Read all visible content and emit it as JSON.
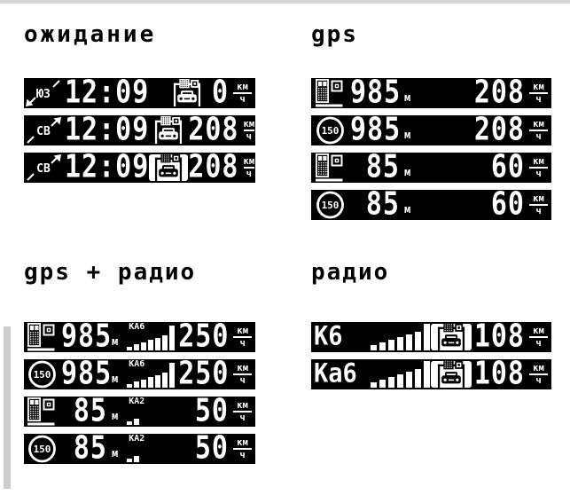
{
  "page": {
    "background": "#ffffff",
    "top_strip_color": "#d6d6d6",
    "scrollbar_color": "#cccccc",
    "lcd_background": "#000000",
    "lcd_foreground": "#ffffff"
  },
  "distance_unit": "м",
  "speed_unit": {
    "top": "км",
    "bottom": "ч"
  },
  "sections": [
    {
      "id": "standby",
      "title": "ожидание",
      "displays": [
        {
          "type": "standby",
          "direction": "ЮЗ",
          "direction_arrow": "sw",
          "time": "12:09",
          "icon": "gantry-camera",
          "icon_inverted": false,
          "speed": "0"
        },
        {
          "type": "standby",
          "direction": "СВ",
          "direction_arrow": "ne",
          "time": "12:09",
          "icon": "gantry-camera",
          "icon_inverted": false,
          "speed": "208"
        },
        {
          "type": "standby",
          "direction": "СВ",
          "direction_arrow": "ne",
          "time": "12:09",
          "icon": "gantry-camera",
          "icon_inverted": true,
          "speed": "208"
        }
      ]
    },
    {
      "id": "gps",
      "title": "gps",
      "displays": [
        {
          "type": "gps",
          "icon": "photo-radar",
          "distance": "985",
          "speed": "208"
        },
        {
          "type": "gps",
          "icon": "speed-limit",
          "limit": "150",
          "distance": "985",
          "speed": "208"
        },
        {
          "type": "gps",
          "icon": "photo-radar",
          "distance": "85",
          "speed": "60"
        },
        {
          "type": "gps",
          "icon": "speed-limit",
          "limit": "150",
          "distance": "85",
          "speed": "60"
        }
      ]
    },
    {
      "id": "gps-radio",
      "title": "gps + радио",
      "displays": [
        {
          "type": "gps-radio",
          "icon": "photo-radar",
          "distance": "985",
          "band": "КА6",
          "signal_levels": [
            1,
            2,
            3,
            4,
            5,
            6,
            8
          ],
          "speed": "250"
        },
        {
          "type": "gps-radio",
          "icon": "speed-limit",
          "limit": "150",
          "distance": "985",
          "band": "КА6",
          "signal_levels": [
            1,
            2,
            3,
            4,
            5,
            6,
            8
          ],
          "speed": "250"
        },
        {
          "type": "gps-radio",
          "icon": "photo-radar",
          "distance": "85",
          "band": "КА2",
          "signal_levels": [
            1,
            2
          ],
          "speed": "50"
        },
        {
          "type": "gps-radio",
          "icon": "speed-limit",
          "limit": "150",
          "distance": "85",
          "band": "КА2",
          "signal_levels": [
            1,
            2
          ],
          "speed": "50"
        }
      ]
    },
    {
      "id": "radio",
      "title": "радио",
      "displays": [
        {
          "type": "radio",
          "band": "К6",
          "signal_levels": [
            1,
            2,
            3,
            4,
            5,
            6,
            8
          ],
          "icon": "gantry-camera",
          "icon_inverted": true,
          "speed": "108"
        },
        {
          "type": "radio",
          "band": "Ка6",
          "signal_levels": [
            1,
            2,
            3,
            4,
            5,
            6,
            8
          ],
          "icon": "gantry-camera",
          "icon_inverted": true,
          "speed": "108"
        }
      ]
    }
  ]
}
